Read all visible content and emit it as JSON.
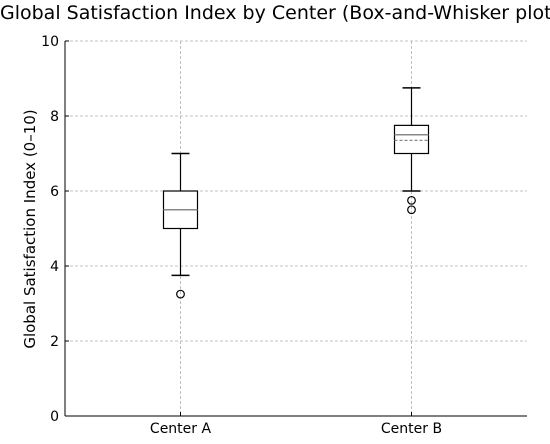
{
  "chart_data": {
    "type": "box",
    "title": "Global Satisfaction Index by Center (Box-and-Whisker plot)",
    "xlabel": "",
    "ylabel": "Global Satisfaction Index (0–10)",
    "ylim": [
      0,
      10
    ],
    "yticks": [
      0,
      2,
      4,
      6,
      8,
      10
    ],
    "grid": true,
    "categories": [
      "Center A",
      "Center B"
    ],
    "boxes": [
      {
        "category": "Center A",
        "whisker_low": 3.75,
        "q1": 5.0,
        "median": 5.5,
        "mean": 5.5,
        "q3": 6.0,
        "whisker_high": 7.0,
        "outliers": [
          3.25
        ]
      },
      {
        "category": "Center B",
        "whisker_low": 6.0,
        "q1": 7.0,
        "median": 7.5,
        "mean": 7.35,
        "q3": 7.75,
        "whisker_high": 8.75,
        "outliers": [
          5.75,
          5.5
        ]
      }
    ]
  },
  "colors": {
    "box_edge": "#000000",
    "median": "#888888",
    "mean": "#888888",
    "grid": "#b0b0b0",
    "axis": "#000000"
  }
}
